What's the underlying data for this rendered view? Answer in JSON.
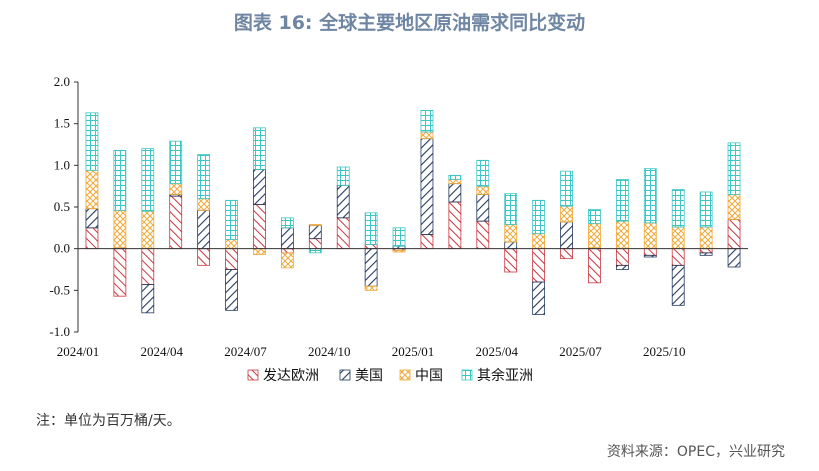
{
  "title": "图表 16: 全球主要地区原油需求同比变动",
  "note": "注：单位为百万桶/天。",
  "source": "资料来源：OPEC，兴业研究",
  "colors": {
    "europe": "#c8383f",
    "usa": "#243a5e",
    "china": "#f0a93a",
    "others": "#3ec6c6",
    "axis": "#333333"
  },
  "chart_data": {
    "type": "bar",
    "stacked": true,
    "ylim": [
      -1.0,
      2.0
    ],
    "yticks": [
      "2.0",
      "1.5",
      "1.0",
      "0.5",
      "0.0",
      "-0.5",
      "-1.0"
    ],
    "ytick_values": [
      2.0,
      1.5,
      1.0,
      0.5,
      0.0,
      -0.5,
      -1.0
    ],
    "x_labels": [
      "2024/01",
      "2024/04",
      "2024/07",
      "2024/10",
      "2025/01",
      "2025/04",
      "2025/07",
      "2025/10"
    ],
    "x_label_every": 3,
    "categories": [
      "2024/01",
      "2024/02",
      "2024/03",
      "2024/04",
      "2024/05",
      "2024/06",
      "2024/07",
      "2024/08",
      "2024/09",
      "2024/10",
      "2024/11",
      "2024/12",
      "2025/01",
      "2025/02",
      "2025/03",
      "2025/04",
      "2025/05",
      "2025/06",
      "2025/07",
      "2025/08",
      "2025/09",
      "2025/10",
      "2025/11",
      "2025/12"
    ],
    "series": [
      {
        "name": "发达欧洲",
        "key": "europe",
        "values": [
          0.25,
          -0.57,
          -0.43,
          0.63,
          -0.2,
          -0.25,
          0.53,
          -0.05,
          0.12,
          0.37,
          0.05,
          -0.02,
          0.17,
          0.56,
          0.33,
          -0.28,
          -0.4,
          -0.12,
          -0.41,
          -0.2,
          -0.08,
          -0.2,
          -0.05,
          0.35
        ]
      },
      {
        "name": "美国",
        "key": "usa",
        "values": [
          0.23,
          0.01,
          -0.34,
          0.02,
          0.46,
          -0.49,
          0.42,
          0.25,
          0.16,
          0.39,
          -0.45,
          0.03,
          1.15,
          0.22,
          0.32,
          0.08,
          -0.39,
          0.32,
          0.01,
          -0.05,
          -0.02,
          -0.48,
          -0.03,
          -0.22
        ]
      },
      {
        "name": "中国",
        "key": "china",
        "values": [
          0.46,
          0.45,
          0.45,
          0.13,
          0.14,
          0.11,
          -0.07,
          -0.18,
          0.01,
          0.0,
          -0.05,
          -0.02,
          0.08,
          0.05,
          0.1,
          0.21,
          0.18,
          0.19,
          0.29,
          0.33,
          0.31,
          0.26,
          0.26,
          0.3
        ]
      },
      {
        "name": "其余亚洲",
        "key": "others",
        "values": [
          0.69,
          0.72,
          0.75,
          0.51,
          0.53,
          0.47,
          0.5,
          0.12,
          -0.05,
          0.22,
          0.38,
          0.22,
          0.26,
          0.05,
          0.31,
          0.37,
          0.4,
          0.42,
          0.17,
          0.5,
          0.65,
          0.45,
          0.42,
          0.62
        ]
      }
    ]
  }
}
